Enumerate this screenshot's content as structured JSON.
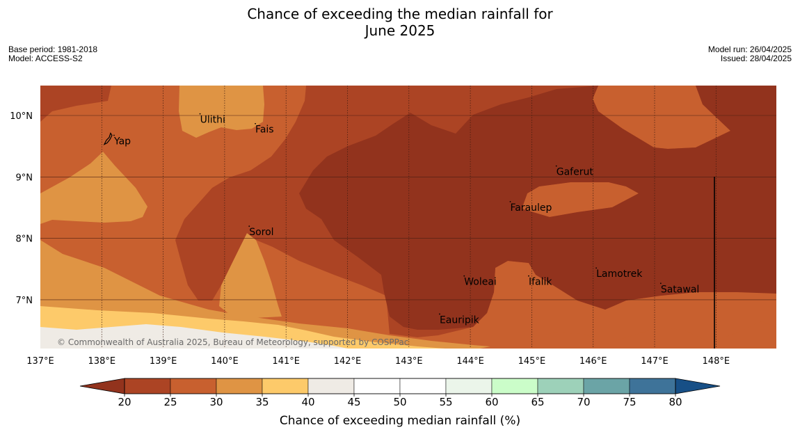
{
  "title_line1": "Chance of exceeding the median rainfall for",
  "title_line2": "June 2025",
  "meta": {
    "base_period": "Base period: 1981-2018",
    "model": "Model: ACCESS-S2",
    "model_run": "Model run: 26/04/2025",
    "issued": "Issued: 28/04/2025"
  },
  "map": {
    "lon_range": [
      137,
      149
    ],
    "lat_range": [
      6.2,
      10.5
    ],
    "lon_ticks": [
      "137°E",
      "138°E",
      "139°E",
      "140°E",
      "141°E",
      "142°E",
      "143°E",
      "144°E",
      "145°E",
      "146°E",
      "147°E",
      "148°E"
    ],
    "lat_ticks": [
      "10°N",
      "9°N",
      "8°N",
      "7°N"
    ],
    "credit": "© Commonwealth of Australia 2025, Bureau of Meteorology, supported by COSPPac",
    "places": [
      {
        "name": "Yap",
        "lon": 138.2,
        "lat": 9.53
      },
      {
        "name": "Ulithi",
        "lon": 139.6,
        "lat": 9.88
      },
      {
        "name": "Fais",
        "lon": 140.5,
        "lat": 9.72
      },
      {
        "name": "Gaferut",
        "lon": 145.4,
        "lat": 9.03
      },
      {
        "name": "Faraulep",
        "lon": 144.65,
        "lat": 8.45
      },
      {
        "name": "Sorol",
        "lon": 140.4,
        "lat": 8.05
      },
      {
        "name": "Lamotrek",
        "lon": 146.05,
        "lat": 7.37
      },
      {
        "name": "Woleai",
        "lon": 143.9,
        "lat": 7.24
      },
      {
        "name": "Ifalik",
        "lon": 144.95,
        "lat": 7.24
      },
      {
        "name": "Satawal",
        "lon": 147.1,
        "lat": 7.12
      },
      {
        "name": "Eauripik",
        "lon": 143.5,
        "lat": 6.62
      }
    ]
  },
  "colorbar": {
    "title": "Chance of exceeding median rainfall (%)",
    "ticks": [
      "20",
      "25",
      "30",
      "35",
      "40",
      "45",
      "50",
      "55",
      "60",
      "65",
      "70",
      "75",
      "80"
    ],
    "colors": {
      "lt20": "#92331d",
      "b20_25": "#ac4424",
      "b25_30": "#c8602f",
      "b30_35": "#df9444",
      "b35_40": "#fdca6a",
      "b40_45": "#efebe5",
      "b45_50": "#ffffff",
      "b50_55": "#ffffff",
      "b55_60": "#ebf5ea",
      "b60_65": "#cbfdc9",
      "b65_70": "#9dd1b9",
      "b70_75": "#6ba4a6",
      "b75_80": "#3e7399",
      "gt80": "#174f86"
    }
  }
}
